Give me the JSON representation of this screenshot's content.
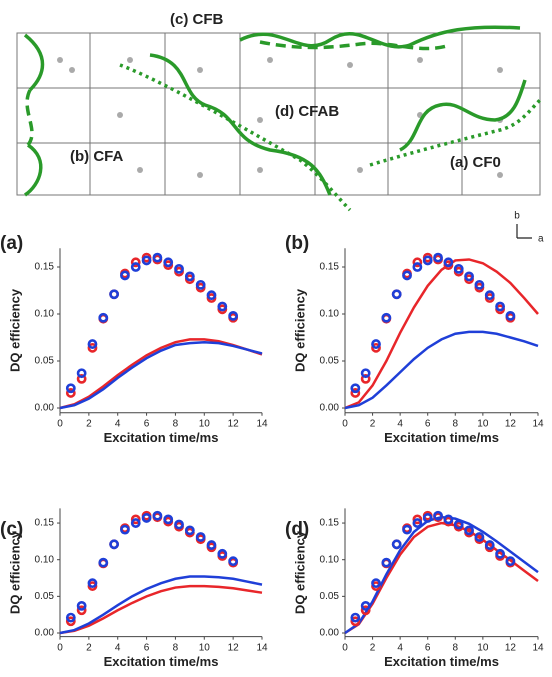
{
  "diagram": {
    "labels": [
      "(c) CFB",
      "(d) CFAB",
      "(b) CFA",
      "(a) CF0",
      "b",
      "a"
    ]
  },
  "chart_data": [
    {
      "type": "scatter",
      "title": "(a)",
      "x_label": "Excitation time/ms",
      "y_label": "DQ efficiency",
      "xlim": [
        0,
        14
      ],
      "xticks": [
        0,
        2,
        4,
        6,
        8,
        10,
        12,
        14
      ],
      "ylim": [
        -0.005,
        0.17
      ],
      "yticks": [
        {
          "value": 0,
          "label": "0.00"
        },
        0.05,
        {
          "value": 0.1,
          "label": "0.10"
        },
        0.15
      ],
      "series": [
        {
          "color": "#e8262a",
          "mode": "markers",
          "x": [
            0.75,
            1.5,
            2.25,
            3,
            3.75,
            4.5,
            5.25,
            6,
            6.75,
            7.5,
            8.25,
            9,
            9.75,
            10.5,
            11.25,
            12
          ],
          "values": [
            0.016,
            0.031,
            0.064,
            0.095,
            0.121,
            0.143,
            0.155,
            0.16,
            0.158,
            0.152,
            0.145,
            0.137,
            0.128,
            0.117,
            0.105,
            0.096
          ]
        },
        {
          "color": "#1f3fd8",
          "mode": "markers",
          "x": [
            0.75,
            1.5,
            2.25,
            3,
            3.75,
            4.5,
            5.25,
            6,
            6.75,
            7.5,
            8.25,
            9,
            9.75,
            10.5,
            11.25,
            12
          ],
          "values": [
            0.021,
            0.037,
            0.068,
            0.096,
            0.121,
            0.141,
            0.15,
            0.157,
            0.16,
            0.155,
            0.148,
            0.14,
            0.131,
            0.12,
            0.108,
            0.098
          ]
        },
        {
          "color": "#e8262a",
          "mode": "line",
          "x": [
            0,
            1,
            2,
            3,
            4,
            5,
            6,
            7,
            8,
            9,
            10,
            11,
            12,
            13,
            14
          ],
          "values": [
            0,
            0.004,
            0.012,
            0.023,
            0.035,
            0.046,
            0.056,
            0.064,
            0.07,
            0.073,
            0.073,
            0.071,
            0.067,
            0.062,
            0.057
          ]
        },
        {
          "color": "#1f3fd8",
          "mode": "line",
          "x": [
            0,
            1,
            2,
            3,
            4,
            5,
            6,
            7,
            8,
            9,
            10,
            11,
            12,
            13,
            14
          ],
          "values": [
            0,
            0.003,
            0.01,
            0.02,
            0.032,
            0.043,
            0.053,
            0.061,
            0.067,
            0.069,
            0.07,
            0.069,
            0.066,
            0.062,
            0.058
          ]
        }
      ]
    },
    {
      "type": "scatter",
      "title": "(b)",
      "x_label": "Excitation time/ms",
      "y_label": "DQ efficiency",
      "xlim": [
        0,
        14
      ],
      "xticks": [
        0,
        2,
        4,
        6,
        8,
        10,
        12,
        14
      ],
      "ylim": [
        -0.005,
        0.17
      ],
      "yticks": [
        {
          "value": 0,
          "label": "0.00"
        },
        0.05,
        {
          "value": 0.1,
          "label": "0.10"
        },
        0.15
      ],
      "series": [
        {
          "color": "#e8262a",
          "mode": "markers",
          "x": [
            0.75,
            1.5,
            2.25,
            3,
            3.75,
            4.5,
            5.25,
            6,
            6.75,
            7.5,
            8.25,
            9,
            9.75,
            10.5,
            11.25,
            12
          ],
          "values": [
            0.016,
            0.031,
            0.064,
            0.095,
            0.121,
            0.143,
            0.155,
            0.16,
            0.158,
            0.152,
            0.145,
            0.137,
            0.128,
            0.117,
            0.105,
            0.096
          ]
        },
        {
          "color": "#1f3fd8",
          "mode": "markers",
          "x": [
            0.75,
            1.5,
            2.25,
            3,
            3.75,
            4.5,
            5.25,
            6,
            6.75,
            7.5,
            8.25,
            9,
            9.75,
            10.5,
            11.25,
            12
          ],
          "values": [
            0.021,
            0.037,
            0.068,
            0.096,
            0.121,
            0.141,
            0.15,
            0.157,
            0.16,
            0.155,
            0.148,
            0.14,
            0.131,
            0.12,
            0.108,
            0.098
          ]
        },
        {
          "color": "#e8262a",
          "mode": "line",
          "x": [
            0,
            1,
            2,
            3,
            4,
            5,
            6,
            7,
            8,
            9,
            10,
            11,
            12,
            13,
            14
          ],
          "values": [
            0,
            0.006,
            0.024,
            0.05,
            0.08,
            0.107,
            0.13,
            0.147,
            0.157,
            0.158,
            0.154,
            0.145,
            0.133,
            0.117,
            0.1
          ]
        },
        {
          "color": "#1f3fd8",
          "mode": "line",
          "x": [
            0,
            1,
            2,
            3,
            4,
            5,
            6,
            7,
            8,
            9,
            10,
            11,
            12,
            13,
            14
          ],
          "values": [
            0,
            0.003,
            0.011,
            0.024,
            0.038,
            0.052,
            0.064,
            0.073,
            0.079,
            0.081,
            0.081,
            0.079,
            0.075,
            0.071,
            0.066
          ]
        }
      ]
    },
    {
      "type": "scatter",
      "title": "(c)",
      "x_label": "Excitation time/ms",
      "y_label": "DQ efficiency",
      "xlim": [
        0,
        14
      ],
      "xticks": [
        0,
        2,
        4,
        6,
        8,
        10,
        12,
        14
      ],
      "ylim": [
        -0.005,
        0.17
      ],
      "yticks": [
        {
          "value": 0,
          "label": "0.00"
        },
        0.05,
        {
          "value": 0.1,
          "label": "0.10"
        },
        0.15
      ],
      "series": [
        {
          "color": "#e8262a",
          "mode": "markers",
          "x": [
            0.75,
            1.5,
            2.25,
            3,
            3.75,
            4.5,
            5.25,
            6,
            6.75,
            7.5,
            8.25,
            9,
            9.75,
            10.5,
            11.25,
            12
          ],
          "values": [
            0.016,
            0.031,
            0.064,
            0.095,
            0.121,
            0.143,
            0.155,
            0.16,
            0.158,
            0.152,
            0.145,
            0.137,
            0.128,
            0.117,
            0.105,
            0.096
          ]
        },
        {
          "color": "#1f3fd8",
          "mode": "markers",
          "x": [
            0.75,
            1.5,
            2.25,
            3,
            3.75,
            4.5,
            5.25,
            6,
            6.75,
            7.5,
            8.25,
            9,
            9.75,
            10.5,
            11.25,
            12
          ],
          "values": [
            0.021,
            0.037,
            0.068,
            0.096,
            0.121,
            0.141,
            0.15,
            0.157,
            0.16,
            0.155,
            0.148,
            0.14,
            0.131,
            0.12,
            0.108,
            0.098
          ]
        },
        {
          "color": "#e8262a",
          "mode": "line",
          "x": [
            0,
            1,
            2,
            3,
            4,
            5,
            6,
            7,
            8,
            9,
            10,
            11,
            12,
            13,
            14
          ],
          "values": [
            0,
            0.003,
            0.01,
            0.02,
            0.031,
            0.041,
            0.05,
            0.057,
            0.062,
            0.064,
            0.064,
            0.063,
            0.061,
            0.058,
            0.055
          ]
        },
        {
          "color": "#1f3fd8",
          "mode": "line",
          "x": [
            0,
            1,
            2,
            3,
            4,
            5,
            6,
            7,
            8,
            9,
            10,
            11,
            12,
            13,
            14
          ],
          "values": [
            0,
            0.004,
            0.013,
            0.025,
            0.038,
            0.05,
            0.06,
            0.068,
            0.074,
            0.077,
            0.077,
            0.076,
            0.074,
            0.07,
            0.066
          ]
        }
      ]
    },
    {
      "type": "scatter",
      "title": "(d)",
      "x_label": "Excitation time/ms",
      "y_label": "DQ efficiency",
      "xlim": [
        0,
        14
      ],
      "xticks": [
        0,
        2,
        4,
        6,
        8,
        10,
        12,
        14
      ],
      "ylim": [
        -0.005,
        0.17
      ],
      "yticks": [
        {
          "value": 0,
          "label": "0.00"
        },
        0.05,
        {
          "value": 0.1,
          "label": "0.10"
        },
        0.15
      ],
      "series": [
        {
          "color": "#e8262a",
          "mode": "markers",
          "x": [
            0.75,
            1.5,
            2.25,
            3,
            3.75,
            4.5,
            5.25,
            6,
            6.75,
            7.5,
            8.25,
            9,
            9.75,
            10.5,
            11.25,
            12
          ],
          "values": [
            0.016,
            0.031,
            0.064,
            0.095,
            0.121,
            0.143,
            0.155,
            0.16,
            0.158,
            0.152,
            0.145,
            0.137,
            0.128,
            0.117,
            0.105,
            0.096
          ]
        },
        {
          "color": "#1f3fd8",
          "mode": "markers",
          "x": [
            0.75,
            1.5,
            2.25,
            3,
            3.75,
            4.5,
            5.25,
            6,
            6.75,
            7.5,
            8.25,
            9,
            9.75,
            10.5,
            11.25,
            12
          ],
          "values": [
            0.021,
            0.037,
            0.068,
            0.096,
            0.121,
            0.141,
            0.15,
            0.157,
            0.16,
            0.155,
            0.148,
            0.14,
            0.131,
            0.12,
            0.108,
            0.098
          ]
        },
        {
          "color": "#e8262a",
          "mode": "line",
          "x": [
            0,
            1,
            2,
            3,
            4,
            5,
            6,
            7,
            8,
            9,
            10,
            11,
            12,
            13,
            14
          ],
          "values": [
            0,
            0.012,
            0.04,
            0.075,
            0.107,
            0.131,
            0.145,
            0.15,
            0.147,
            0.139,
            0.127,
            0.113,
            0.099,
            0.085,
            0.071
          ]
        },
        {
          "color": "#1f3fd8",
          "mode": "line",
          "x": [
            0,
            1,
            2,
            3,
            4,
            5,
            6,
            7,
            8,
            9,
            10,
            11,
            12,
            13,
            14
          ],
          "values": [
            0,
            0.013,
            0.043,
            0.08,
            0.113,
            0.138,
            0.153,
            0.158,
            0.156,
            0.149,
            0.138,
            0.125,
            0.111,
            0.097,
            0.083
          ]
        }
      ]
    }
  ]
}
